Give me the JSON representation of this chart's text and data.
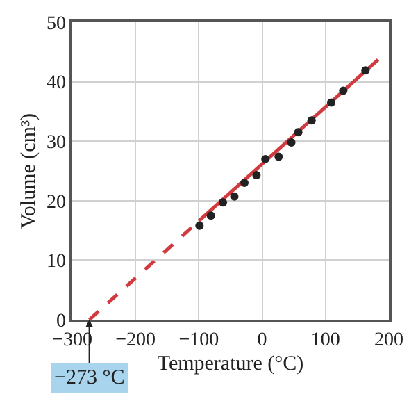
{
  "chart_data": {
    "type": "scatter",
    "xlabel": "Temperature (°C)",
    "ylabel": "Volume (cm³)",
    "xlim": [
      -300,
      200
    ],
    "ylim": [
      0,
      50
    ],
    "xticks": [
      -300,
      -200,
      -100,
      0,
      100,
      200
    ],
    "yticks": [
      0,
      10,
      20,
      30,
      40,
      50
    ],
    "grid": true,
    "series": [
      {
        "marker": "circle",
        "color": "#222222",
        "x": [
          -99,
          -81,
          -62,
          -44,
          -28,
          -9,
          5,
          26,
          46,
          57,
          78,
          109,
          128,
          163
        ],
        "values": [
          15.8,
          17.5,
          19.7,
          20.7,
          23.0,
          24.3,
          27.0,
          27.4,
          29.8,
          31.5,
          33.5,
          36.5,
          38.5,
          41.9
        ]
      },
      {
        "type": "line",
        "marker": "none",
        "color": "#d13b40",
        "line_style": "solid",
        "x": [
          -100,
          183
        ],
        "values": [
          16.6,
          43.7
        ]
      },
      {
        "type": "line",
        "marker": "none",
        "color": "#d13b40",
        "line_style": "dashed",
        "x": [
          -273,
          -100
        ],
        "values": [
          0,
          16.6
        ]
      }
    ],
    "annotations": [
      {
        "text": "−273 °C",
        "x": -273,
        "y": 0
      }
    ]
  }
}
